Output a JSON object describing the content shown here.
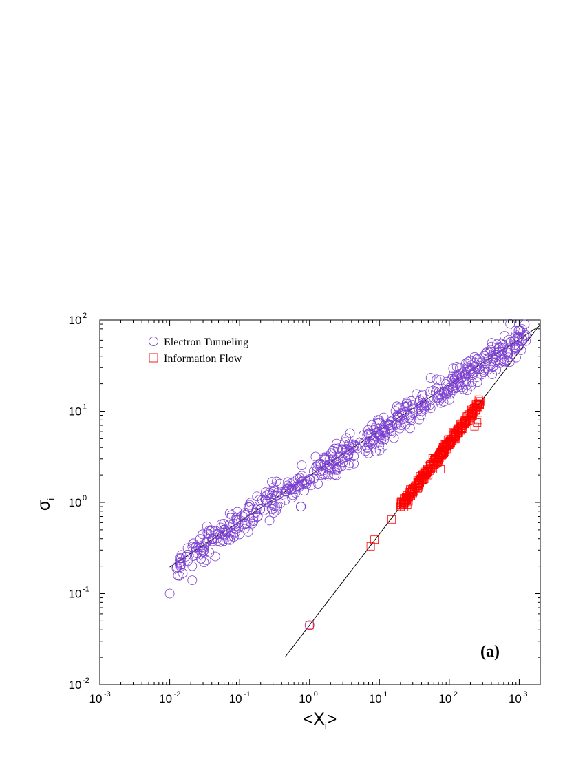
{
  "chart_data": {
    "type": "scatter",
    "xscale": "log",
    "yscale": "log",
    "xlim": [
      0.001,
      2000
    ],
    "ylim": [
      0.01,
      100
    ],
    "x_ticks": [
      {
        "base": "10",
        "exp": "-3"
      },
      {
        "base": "10",
        "exp": "-2"
      },
      {
        "base": "10",
        "exp": "-1"
      },
      {
        "base": "10",
        "exp": "0"
      },
      {
        "base": "10",
        "exp": "1"
      },
      {
        "base": "10",
        "exp": "2"
      },
      {
        "base": "10",
        "exp": "3"
      }
    ],
    "y_ticks": [
      {
        "base": "10",
        "exp": "-2"
      },
      {
        "base": "10",
        "exp": "-1"
      },
      {
        "base": "10",
        "exp": "0"
      },
      {
        "base": "10",
        "exp": "1"
      },
      {
        "base": "10",
        "exp": "2"
      }
    ],
    "xlabel": {
      "main": "<X",
      "sub": "i",
      "end": ">"
    },
    "ylabel": {
      "main": "σ",
      "sub": "i"
    },
    "panel_label": "(a)",
    "grid": false,
    "legend_position": "top-left",
    "series": [
      {
        "name": "Electron Tunneling",
        "marker": "circle",
        "color": "#7b3fd0",
        "cloud": {
          "x_range": [
            0.012,
            1300
          ],
          "fit_a": 1.85,
          "fit_b": 0.5,
          "spread_decades": 0.15,
          "count": 560
        },
        "points": [
          [
            0.01,
            0.1
          ],
          [
            0.021,
            0.2
          ],
          [
            0.021,
            0.14
          ],
          [
            0.041,
            0.4
          ],
          [
            0.031,
            0.22
          ],
          [
            1.0,
            0.045
          ]
        ]
      },
      {
        "name": "Information Flow",
        "marker": "square",
        "color": "#ff0000",
        "cloud": {
          "x_range": [
            20,
            280
          ],
          "fit_a": 0.045,
          "fit_b": 1.0,
          "spread_decades": 0.04,
          "count": 320
        },
        "points": [
          [
            1.0,
            0.045
          ],
          [
            7.5,
            0.33
          ],
          [
            8.5,
            0.39
          ],
          [
            15,
            0.65
          ],
          [
            25,
            0.95
          ],
          [
            75,
            2.3
          ],
          [
            270,
            12
          ],
          [
            260,
            8.0
          ],
          [
            250,
            7.5
          ],
          [
            230,
            6.8
          ]
        ]
      }
    ],
    "fit_lines": [
      {
        "a": 1.95,
        "b": 0.5,
        "x_range": [
          0.01,
          2000
        ],
        "color": "#000000"
      },
      {
        "a": 0.045,
        "b": 1.0,
        "x_range": [
          0.45,
          2000
        ],
        "color": "#000000"
      }
    ]
  }
}
